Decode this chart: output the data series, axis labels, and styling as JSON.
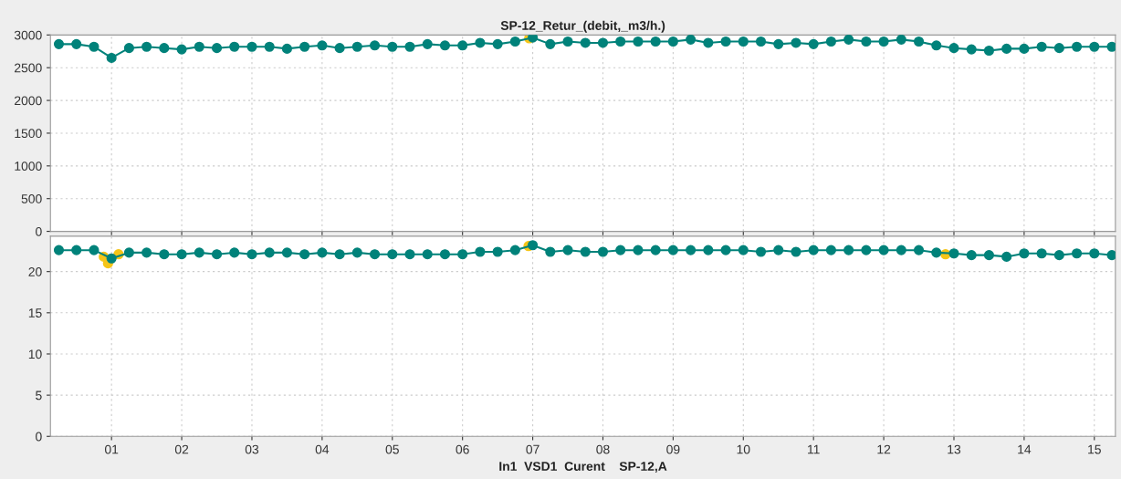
{
  "chart_data": [
    {
      "type": "line",
      "title": "SP-12_Retur_(debit,_m3/h.)",
      "tick_labels": "y",
      "grid": true,
      "marker": "circle",
      "line_style": "solid",
      "x": [
        0.25,
        0.5,
        0.75,
        1.0,
        1.25,
        1.5,
        1.75,
        2.0,
        2.25,
        2.5,
        2.75,
        3.0,
        3.25,
        3.5,
        3.75,
        4.0,
        4.25,
        4.5,
        4.75,
        5.0,
        5.25,
        5.5,
        5.75,
        6.0,
        6.25,
        6.5,
        6.75,
        7.0,
        7.25,
        7.5,
        7.75,
        8.0,
        8.25,
        8.5,
        8.75,
        9.0,
        9.25,
        9.5,
        9.75,
        10.0,
        10.25,
        10.5,
        10.75,
        11.0,
        11.25,
        11.5,
        11.75,
        12.0,
        12.25,
        12.5,
        12.75,
        13.0,
        13.25,
        13.5,
        13.75,
        14.0,
        14.25,
        14.5,
        14.75,
        15.0,
        15.25
      ],
      "xlim": [
        0.13,
        15.3
      ],
      "xticks": [
        {
          "value": 1,
          "label": null
        },
        {
          "value": 2,
          "label": null
        },
        {
          "value": 3,
          "label": null
        },
        {
          "value": 4,
          "label": null
        },
        {
          "value": 5,
          "label": null
        },
        {
          "value": 6,
          "label": null
        },
        {
          "value": 7,
          "label": null
        },
        {
          "value": 8,
          "label": null
        },
        {
          "value": 9,
          "label": null
        },
        {
          "value": 10,
          "label": null
        },
        {
          "value": 11,
          "label": null
        },
        {
          "value": 12,
          "label": null
        },
        {
          "value": 13,
          "label": null
        },
        {
          "value": 14,
          "label": null
        },
        {
          "value": 15,
          "label": null
        }
      ],
      "ylim": [
        0,
        3000
      ],
      "yticks": [
        0,
        500,
        1000,
        1500,
        2000,
        2500,
        3000
      ],
      "series": [
        {
          "type": "line",
          "color": "#00827a",
          "values": [
            2860,
            2860,
            2820,
            2650,
            2800,
            2820,
            2800,
            2780,
            2820,
            2800,
            2820,
            2820,
            2820,
            2790,
            2820,
            2840,
            2800,
            2820,
            2840,
            2820,
            2820,
            2860,
            2840,
            2840,
            2880,
            2860,
            2900,
            2960,
            2860,
            2900,
            2880,
            2880,
            2900,
            2900,
            2900,
            2900,
            2930,
            2880,
            2900,
            2900,
            2900,
            2860,
            2880,
            2860,
            2900,
            2930,
            2900,
            2900,
            2930,
            2900,
            2840,
            2800,
            2780,
            2760,
            2790,
            2790,
            2820,
            2800,
            2820,
            2820,
            2820
          ]
        },
        {
          "type": "scatter",
          "color": "#f5c518",
          "x": [
            6.95
          ],
          "values": [
            2950
          ]
        }
      ]
    },
    {
      "type": "line",
      "xlabel": "In1  VSD1  Curent    SP-12,A",
      "grid": true,
      "marker": "circle",
      "line_style": "solid",
      "x": [
        0.25,
        0.5,
        0.75,
        1.0,
        1.25,
        1.5,
        1.75,
        2.0,
        2.25,
        2.5,
        2.75,
        3.0,
        3.25,
        3.5,
        3.75,
        4.0,
        4.25,
        4.5,
        4.75,
        5.0,
        5.25,
        5.5,
        5.75,
        6.0,
        6.25,
        6.5,
        6.75,
        7.0,
        7.25,
        7.5,
        7.75,
        8.0,
        8.25,
        8.5,
        8.75,
        9.0,
        9.25,
        9.5,
        9.75,
        10.0,
        10.25,
        10.5,
        10.75,
        11.0,
        11.25,
        11.5,
        11.75,
        12.0,
        12.25,
        12.5,
        12.75,
        13.0,
        13.25,
        13.5,
        13.75,
        14.0,
        14.25,
        14.5,
        14.75,
        15.0,
        15.25
      ],
      "xlim": [
        0.13,
        15.3
      ],
      "xticks": [
        {
          "value": 1,
          "label": "01"
        },
        {
          "value": 2,
          "label": "02"
        },
        {
          "value": 3,
          "label": "03"
        },
        {
          "value": 4,
          "label": "04"
        },
        {
          "value": 5,
          "label": "05"
        },
        {
          "value": 6,
          "label": "06"
        },
        {
          "value": 7,
          "label": "07"
        },
        {
          "value": 8,
          "label": "08"
        },
        {
          "value": 9,
          "label": "09"
        },
        {
          "value": 10,
          "label": "10"
        },
        {
          "value": 11,
          "label": "11"
        },
        {
          "value": 12,
          "label": "12"
        },
        {
          "value": 13,
          "label": "13"
        },
        {
          "value": 14,
          "label": "14"
        },
        {
          "value": 15,
          "label": "15"
        }
      ],
      "ylim": [
        0,
        24.3
      ],
      "yticks": [
        0,
        5,
        10,
        15,
        20
      ],
      "series": [
        {
          "type": "scatter",
          "color": "#f5c518",
          "x": [
            0.89,
            0.95,
            1.1,
            6.94,
            12.88
          ],
          "values": [
            21.8,
            21.0,
            22.1,
            23.1,
            22.1
          ]
        },
        {
          "type": "line",
          "color": "#00827a",
          "values": [
            22.6,
            22.6,
            22.6,
            21.6,
            22.3,
            22.3,
            22.1,
            22.1,
            22.3,
            22.1,
            22.3,
            22.1,
            22.3,
            22.3,
            22.1,
            22.3,
            22.1,
            22.3,
            22.1,
            22.1,
            22.1,
            22.1,
            22.1,
            22.1,
            22.4,
            22.4,
            22.6,
            23.2,
            22.4,
            22.6,
            22.4,
            22.4,
            22.6,
            22.6,
            22.6,
            22.6,
            22.6,
            22.6,
            22.6,
            22.6,
            22.4,
            22.6,
            22.4,
            22.6,
            22.6,
            22.6,
            22.6,
            22.6,
            22.6,
            22.6,
            22.3,
            22.2,
            22.0,
            22.0,
            21.8,
            22.2,
            22.2,
            22.0,
            22.2,
            22.2,
            22.0
          ]
        }
      ]
    }
  ]
}
